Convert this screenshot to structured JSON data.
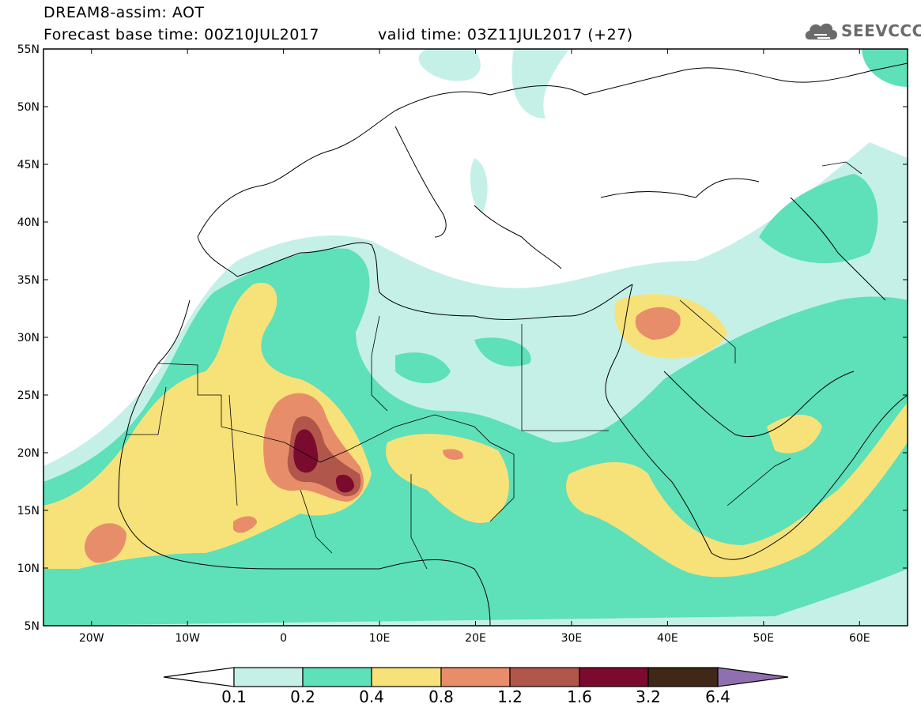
{
  "header": {
    "title": "DREAM8-assim: AOT",
    "forecast_base": "Forecast base time: 00Z10JUL2017",
    "valid_time": "valid time: 03Z11JUL2017 (+27)"
  },
  "logo": {
    "text": "SEEVCCC",
    "icon": "cloud-logo-icon"
  },
  "map": {
    "variable": "AOT",
    "lat_range": [
      5,
      55
    ],
    "lon_range": [
      -25,
      65
    ],
    "lat_ticks": [
      "55N",
      "50N",
      "45N",
      "40N",
      "35N",
      "30N",
      "25N",
      "20N",
      "15N",
      "10N",
      "5N"
    ],
    "lon_ticks": [
      "20W",
      "10W",
      "0",
      "10E",
      "20E",
      "30E",
      "40E",
      "50E",
      "60E"
    ]
  },
  "colorbar": {
    "levels": [
      "0.1",
      "0.2",
      "0.4",
      "0.8",
      "1.2",
      "1.6",
      "3.2",
      "6.4"
    ],
    "colors": {
      "below": "#ffffff",
      "c1": "#c4f0e8",
      "c2": "#5ee0b8",
      "c3": "#f7e27a",
      "c4": "#e88d6a",
      "c5": "#b1564a",
      "c6": "#7b0b2e",
      "c7": "#402818",
      "above": "#8f6fb0"
    }
  }
}
